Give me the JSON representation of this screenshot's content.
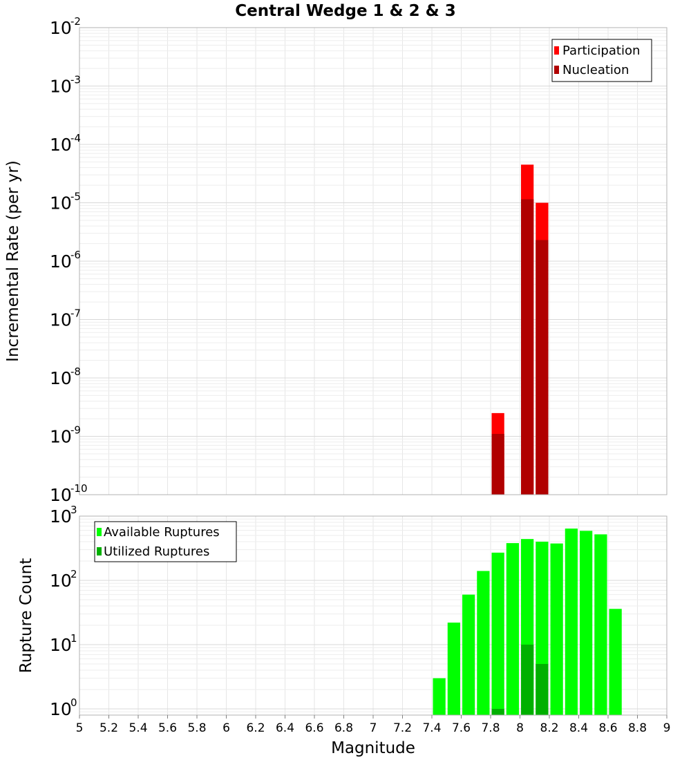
{
  "chart_data": [
    {
      "type": "bar",
      "title": "Central Wedge 1 & 2 & 3",
      "xlabel": "Magnitude",
      "ylabel": "Incremental Rate (per yr)",
      "yscale": "log",
      "ylim": [
        1e-10,
        0.01
      ],
      "xlim": [
        5,
        9
      ],
      "bin_width": 0.1,
      "legend_position": "top-right",
      "grid": true,
      "y_ticks": [
        {
          "base": "10",
          "exp": "-10"
        },
        {
          "base": "10",
          "exp": "-9"
        },
        {
          "base": "10",
          "exp": "-8"
        },
        {
          "base": "10",
          "exp": "-7"
        },
        {
          "base": "10",
          "exp": "-6"
        },
        {
          "base": "10",
          "exp": "-5"
        },
        {
          "base": "10",
          "exp": "-4"
        },
        {
          "base": "10",
          "exp": "-3"
        },
        {
          "base": "10",
          "exp": "-2"
        }
      ],
      "series": [
        {
          "name": "Participation",
          "color": "#ff0000",
          "x": [
            7.85,
            8.05,
            8.15
          ],
          "values": [
            2.5e-09,
            4.5e-05,
            1e-05
          ]
        },
        {
          "name": "Nucleation",
          "color": "#b00000",
          "x": [
            7.85,
            8.05,
            8.15
          ],
          "values": [
            1.1e-09,
            1.15e-05,
            2.3e-06
          ]
        }
      ]
    },
    {
      "type": "bar",
      "xlabel": "Magnitude",
      "ylabel": "Rupture Count",
      "yscale": "log",
      "ylim": [
        0.8,
        1000
      ],
      "xlim": [
        5,
        9
      ],
      "bin_width": 0.1,
      "legend_position": "top-left",
      "grid": true,
      "y_ticks": [
        {
          "base": "10",
          "exp": "0"
        },
        {
          "base": "10",
          "exp": "1"
        },
        {
          "base": "10",
          "exp": "2"
        },
        {
          "base": "10",
          "exp": "3"
        }
      ],
      "x_ticks": [
        "5",
        "5.2",
        "5.4",
        "5.6",
        "5.8",
        "6",
        "6.2",
        "6.4",
        "6.6",
        "6.8",
        "7",
        "7.2",
        "7.4",
        "7.6",
        "7.8",
        "8",
        "8.2",
        "8.4",
        "8.6",
        "8.8",
        "9"
      ],
      "series": [
        {
          "name": "Available Ruptures",
          "color": "#00ff00",
          "x": [
            7.45,
            7.55,
            7.65,
            7.75,
            7.85,
            7.95,
            8.05,
            8.15,
            8.25,
            8.35,
            8.45,
            8.55,
            8.65
          ],
          "values": [
            3,
            22,
            60,
            140,
            270,
            380,
            440,
            400,
            375,
            640,
            590,
            520,
            36
          ]
        },
        {
          "name": "Utilized Ruptures",
          "color": "#00b000",
          "x": [
            7.85,
            8.05,
            8.15
          ],
          "values": [
            1,
            10,
            5
          ]
        }
      ]
    }
  ]
}
